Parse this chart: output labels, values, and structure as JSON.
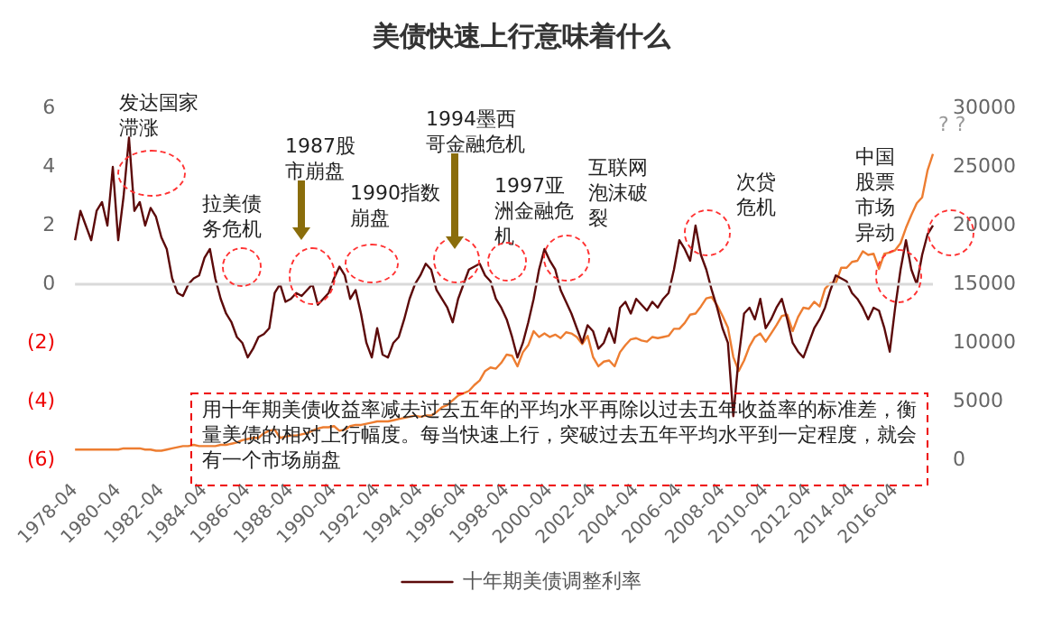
{
  "chart_data": {
    "type": "line",
    "title": "美债快速上行意味着什么",
    "categories": [
      "1978-04",
      null,
      null,
      null,
      null,
      null,
      null,
      null,
      "1980-04",
      null,
      null,
      null,
      null,
      null,
      null,
      null,
      "1982-04",
      null,
      null,
      null,
      null,
      null,
      null,
      null,
      "1984-04",
      null,
      null,
      null,
      null,
      null,
      null,
      null,
      "1986-04",
      null,
      null,
      null,
      null,
      null,
      null,
      null,
      "1988-04",
      null,
      null,
      null,
      null,
      null,
      null,
      null,
      "1990-04",
      null,
      null,
      null,
      null,
      null,
      null,
      null,
      "1992-04",
      null,
      null,
      null,
      null,
      null,
      null,
      null,
      "1994-04",
      null,
      null,
      null,
      null,
      null,
      null,
      null,
      "1996-04",
      null,
      null,
      null,
      null,
      null,
      null,
      null,
      "1998-04",
      null,
      null,
      null,
      null,
      null,
      null,
      null,
      "2000-04",
      null,
      null,
      null,
      null,
      null,
      null,
      null,
      "2002-04",
      null,
      null,
      null,
      null,
      null,
      null,
      null,
      "2004-04",
      null,
      null,
      null,
      null,
      null,
      null,
      null,
      "2006-04",
      null,
      null,
      null,
      null,
      null,
      null,
      null,
      "2008-04",
      null,
      null,
      null,
      null,
      null,
      null,
      null,
      "2010-04",
      null,
      null,
      null,
      null,
      null,
      null,
      null,
      "2012-04",
      null,
      null,
      null,
      null,
      null,
      null,
      null,
      "2014-04",
      null,
      null,
      null,
      null,
      null,
      null,
      null,
      "2016-04",
      null,
      null,
      null,
      null,
      null,
      null,
      null
    ],
    "series": [
      {
        "name": "十年期美债调整利率",
        "color": "#5c0a0a",
        "values": [
          1.5,
          2.5,
          2.0,
          1.5,
          2.5,
          2.8,
          2.0,
          4.0,
          1.5,
          3.0,
          5.0,
          2.5,
          2.8,
          2.0,
          2.6,
          2.3,
          1.6,
          1.2,
          0.2,
          -0.3,
          -0.4,
          0.0,
          0.2,
          0.3,
          0.9,
          1.2,
          0.2,
          -0.5,
          -1.0,
          -1.3,
          -1.8,
          -2.0,
          -2.5,
          -2.2,
          -1.8,
          -1.7,
          -1.5,
          -0.3,
          0.0,
          -0.6,
          -0.5,
          -0.3,
          -0.4,
          -0.2,
          0.0,
          -0.7,
          -0.5,
          -0.3,
          0.2,
          0.6,
          0.3,
          -0.5,
          -0.2,
          -1.0,
          -2.0,
          -2.5,
          -1.5,
          -2.4,
          -2.5,
          -2.0,
          -1.8,
          -1.2,
          -0.5,
          0.0,
          0.3,
          0.7,
          0.5,
          -0.2,
          -0.5,
          -0.8,
          -1.3,
          -0.5,
          0.0,
          0.5,
          0.6,
          0.7,
          0.3,
          0.1,
          -0.5,
          -0.8,
          -1.2,
          -1.8,
          -2.5,
          -2.0,
          -1.3,
          -0.5,
          0.5,
          1.2,
          0.8,
          0.5,
          -0.2,
          -0.6,
          -1.0,
          -1.5,
          -2.0,
          -1.4,
          -1.6,
          -2.2,
          -2.0,
          -1.5,
          -2.0,
          -0.8,
          -0.6,
          -1.0,
          -0.5,
          -0.7,
          -0.9,
          -0.6,
          -0.8,
          -0.5,
          -0.3,
          0.5,
          1.5,
          1.2,
          0.8,
          2.0,
          1.0,
          0.5,
          -0.2,
          -0.8,
          -1.5,
          -2.0,
          -4.5,
          -2.5,
          -1.0,
          -0.8,
          -1.2,
          -0.5,
          -1.5,
          -1.2,
          -0.8,
          -0.5,
          -1.2,
          -2.0,
          -2.3,
          -2.5,
          -2.0,
          -1.5,
          -1.2,
          -0.8,
          -0.2,
          0.3,
          0.2,
          0.1,
          -0.3,
          -0.5,
          -0.8,
          -1.2,
          -0.8,
          -0.9,
          -1.5,
          -2.3,
          -0.8,
          0.5,
          1.5,
          0.5,
          0.0,
          1.0,
          1.7,
          2.0
        ]
      },
      {
        "color": "#ed7d31",
        "axis": "y2",
        "values": [
          900,
          900,
          900,
          900,
          900,
          900,
          900,
          900,
          900,
          1000,
          1000,
          1000,
          1000,
          900,
          900,
          800,
          800,
          900,
          1000,
          1100,
          1200,
          1200,
          1300,
          1200,
          1200,
          1200,
          1200,
          1300,
          1300,
          1400,
          1500,
          1700,
          1800,
          1900,
          1900,
          2300,
          2500,
          2600,
          1900,
          2000,
          2100,
          2100,
          2200,
          2300,
          2500,
          2700,
          2800,
          2800,
          2900,
          2500,
          2600,
          2900,
          3000,
          3000,
          3100,
          3200,
          3300,
          3300,
          3300,
          3400,
          3500,
          3600,
          3700,
          3800,
          3700,
          3800,
          3800,
          4100,
          4500,
          4700,
          5100,
          5500,
          5700,
          5900,
          6400,
          6800,
          7600,
          7900,
          7800,
          8300,
          9000,
          8900,
          8000,
          9200,
          9800,
          11000,
          10500,
          10800,
          10500,
          10700,
          10400,
          10900,
          10800,
          10500,
          9900,
          10600,
          8800,
          8000,
          8400,
          8500,
          8000,
          9200,
          9800,
          10300,
          10400,
          10200,
          10100,
          10500,
          10400,
          10500,
          10600,
          11200,
          11200,
          11700,
          12400,
          12500,
          13100,
          13800,
          13900,
          13200,
          12300,
          11300,
          8800,
          7600,
          8500,
          9700,
          10500,
          10800,
          10100,
          10800,
          11500,
          12300,
          12400,
          11000,
          12200,
          13000,
          12900,
          13500,
          13100,
          14600,
          15100,
          15100,
          16400,
          16400,
          16900,
          17000,
          17800,
          17500,
          17600,
          16300,
          17600,
          17700,
          17900,
          18500,
          19800,
          20900,
          21900,
          22400,
          24700,
          26100
        ]
      }
    ],
    "ylim": [
      -6,
      6
    ],
    "yticks": [
      {
        "value": -6,
        "label": "(6)"
      },
      {
        "value": -4,
        "label": "(4)"
      },
      {
        "value": -2,
        "label": "(2)"
      },
      0,
      2,
      4,
      6
    ],
    "y2lim": [
      0,
      30000
    ],
    "y2ticks": [
      0,
      5000,
      10000,
      15000,
      20000,
      25000,
      30000
    ],
    "ref_lines": [
      {
        "axis": "y",
        "value": 0,
        "color": "#d9d9d9"
      }
    ],
    "legend": "bottom",
    "annotations": [
      "发达国家滞涨",
      "拉美债务危机",
      "1987股市崩盘",
      "1990指数崩盘",
      "1994墨西哥金融危机",
      "1997亚洲金融危机",
      "互联网泡沫破裂",
      "次贷危机",
      "中国股票市场异动",
      "? ?",
      "用十年期美债收益率减去过去五年的平均水平再除以过去五年收益率的标准差，衡量美债的相对上行幅度。每当快速上行，突破过去五年平均水平到一定程度，就会有一个市场崩盘"
    ]
  }
}
